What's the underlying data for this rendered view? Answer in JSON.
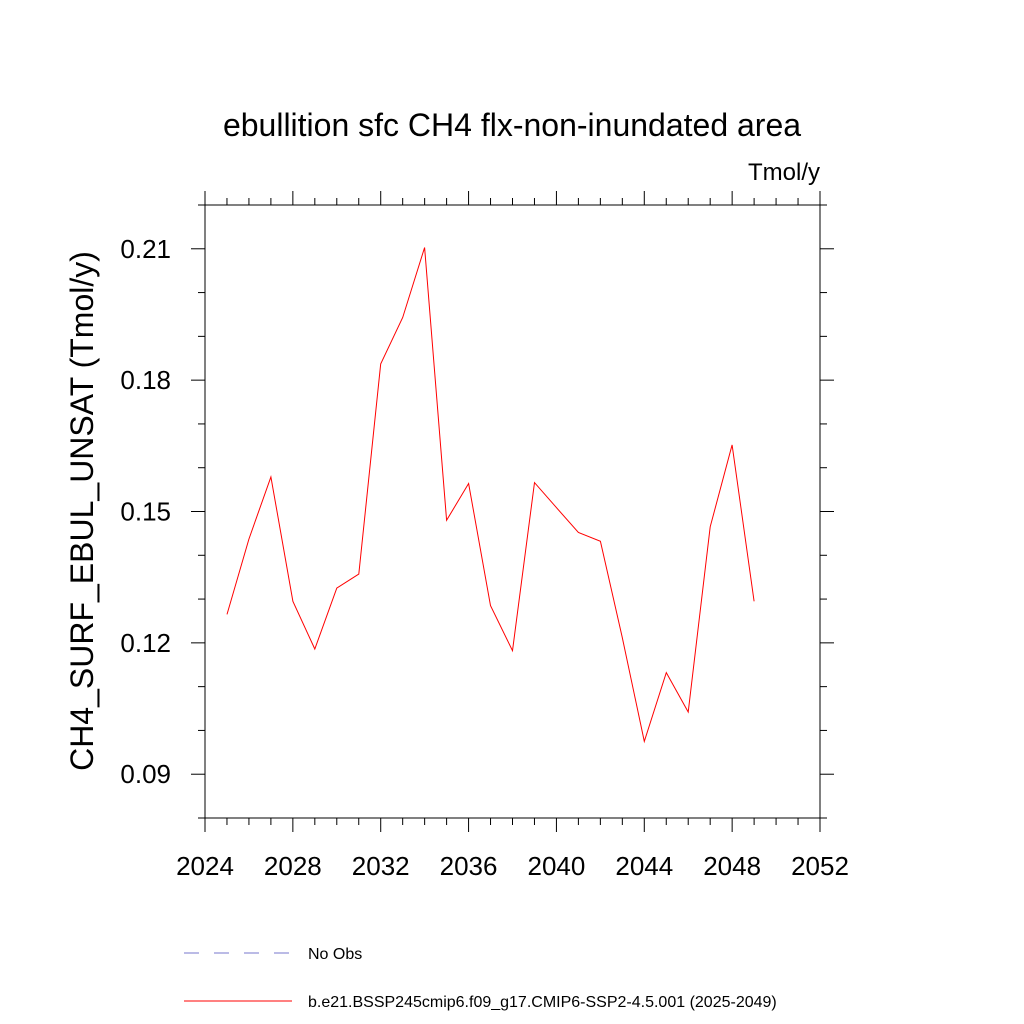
{
  "chart_data": {
    "type": "line",
    "title": "ebullition sfc CH4 flx-non-inundated area",
    "units": "Tmol/y",
    "ylabel": "CH4_SURF_EBUL_UNSAT  (Tmol/y)",
    "xlabel": "",
    "xlim": [
      2024,
      2052
    ],
    "ylim": [
      0.08,
      0.22
    ],
    "xticks": [
      2024,
      2028,
      2032,
      2036,
      2040,
      2044,
      2048,
      2052
    ],
    "xtick_labels": [
      "2024",
      "2028",
      "2032",
      "2036",
      "2040",
      "2044",
      "2048",
      "2052"
    ],
    "yticks": [
      0.09,
      0.12,
      0.15,
      0.18,
      0.21
    ],
    "ytick_labels": [
      "0.09",
      "0.12",
      "0.15",
      "0.18",
      "0.21"
    ],
    "grid": false,
    "legend_position": "bottom",
    "series": [
      {
        "name": "No Obs",
        "color": "#7777cc",
        "style": "dashed",
        "x": [],
        "y": []
      },
      {
        "name": "b.e21.BSSP245cmip6.f09_g17.CMIP6-SSP2-4.5.001 (2025-2049)",
        "color": "#ff0000",
        "style": "solid",
        "x": [
          2025,
          2026,
          2027,
          2028,
          2029,
          2030,
          2031,
          2032,
          2033,
          2034,
          2035,
          2036,
          2037,
          2038,
          2039,
          2040,
          2041,
          2042,
          2043,
          2044,
          2045,
          2046,
          2047,
          2048,
          2049
        ],
        "y": [
          0.1265,
          0.1437,
          0.1579,
          0.1295,
          0.1186,
          0.1325,
          0.1357,
          0.1837,
          0.1943,
          0.2103,
          0.148,
          0.1564,
          0.1285,
          0.1182,
          0.1566,
          0.1509,
          0.1452,
          0.1432,
          0.1212,
          0.0975,
          0.1132,
          0.1042,
          0.1465,
          0.1652,
          0.1295
        ]
      }
    ]
  }
}
